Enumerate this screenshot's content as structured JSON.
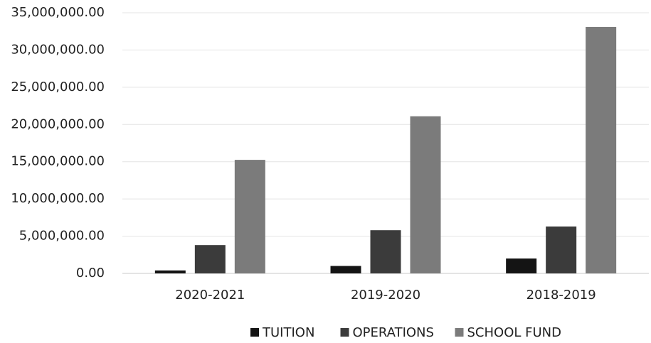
{
  "chart_data": {
    "type": "bar",
    "categories": [
      "2020-2021",
      "2019-2020",
      "2018-2019"
    ],
    "series": [
      {
        "name": "TUITION",
        "color": "#141414",
        "values": [
          400000,
          1000000,
          2000000
        ]
      },
      {
        "name": "OPERATIONS",
        "color": "#3b3b3b",
        "values": [
          3800000,
          5800000,
          6300000
        ]
      },
      {
        "name": "SCHOOL FUND",
        "color": "#7b7b7b",
        "values": [
          15250000,
          21100000,
          33100000
        ]
      }
    ],
    "ylim": [
      0,
      35000000
    ],
    "yticks": [
      {
        "value": 0,
        "label": "0.00"
      },
      {
        "value": 5000000,
        "label": "5,000,000.00"
      },
      {
        "value": 10000000,
        "label": "10,000,000.00"
      },
      {
        "value": 15000000,
        "label": "15,000,000.00"
      },
      {
        "value": 20000000,
        "label": "20,000,000.00"
      },
      {
        "value": 25000000,
        "label": "25,000,000.00"
      },
      {
        "value": 30000000,
        "label": "30,000,000.00"
      },
      {
        "value": 35000000,
        "label": "35,000,000.00"
      }
    ],
    "grid": true,
    "legend": "bottom"
  }
}
